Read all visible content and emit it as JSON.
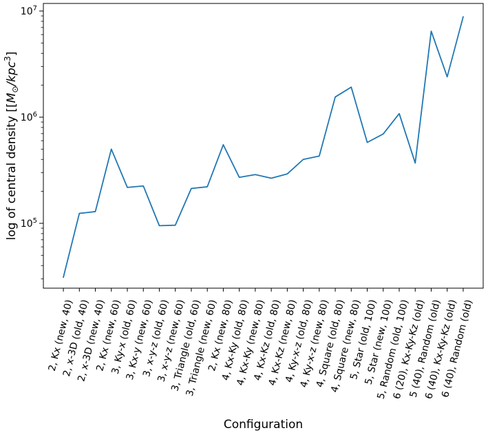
{
  "chart_data": {
    "type": "line",
    "title": "",
    "xlabel": "Configuration",
    "ylabel": "log of central density [[M⊙/kpc³]",
    "ylabel_segments": [
      {
        "text": "log of central density [[",
        "mode": "normal"
      },
      {
        "text": "M",
        "mode": "italic"
      },
      {
        "text": "⊙",
        "mode": "sub"
      },
      {
        "text": "/kpc",
        "mode": "italic"
      },
      {
        "text": "3",
        "mode": "sup"
      },
      {
        "text": "]",
        "mode": "normal"
      }
    ],
    "categories": [
      "2, Kx (new, 40)",
      "2, x-3D (old, 40)",
      "2, x-3D (new, 40)",
      "2, Kx (new, 60)",
      "3, Ky-x (old, 60)",
      "3, Kx-y (new, 60)",
      "3, x-y-z (old, 60)",
      "3, x-y-z (new, 60)",
      "3, Triangle (old, 60)",
      "3, Triangle (new, 60)",
      "2, Kx (new, 80)",
      "4, Kx-Ky (old, 80)",
      "4, Kx-Ky (new, 80)",
      "4, Kx-Kz (old, 80)",
      "4, Kx-Kz (new, 80)",
      "4, Ky-x-z (old, 80)",
      "4, Ky-x-z (new, 80)",
      "4, Square (old, 80)",
      "4, Square (new, 80)",
      "5, Star (old, 100)",
      "5, Star (new, 100)",
      "5, Random (old, 100)",
      "6 (20), Kx-Ky-Kz (old)",
      "5 (40), Random (old)",
      "6 (40), Kx-Ky-Kz (old)",
      "6 (40), Random (old)"
    ],
    "values": [
      31000,
      124000,
      129000,
      500000,
      218000,
      225000,
      95000,
      96000,
      213000,
      221000,
      550000,
      271000,
      288000,
      266000,
      292000,
      400000,
      430000,
      1550000,
      1920000,
      578000,
      695000,
      1080000,
      370000,
      6460000,
      2400000,
      8830000
    ],
    "ylim": [
      24500,
      11790000
    ],
    "yticks": [
      {
        "value": 100000,
        "base": "10",
        "exp": "5"
      },
      {
        "value": 1000000,
        "base": "10",
        "exp": "6"
      },
      {
        "value": 10000000,
        "base": "10",
        "exp": "7"
      }
    ],
    "grid": false,
    "legend": null,
    "tick_rotation_deg": 76,
    "line_color": "#1f77b4",
    "axis_color": "#000000",
    "background_color": "#ffffff"
  }
}
